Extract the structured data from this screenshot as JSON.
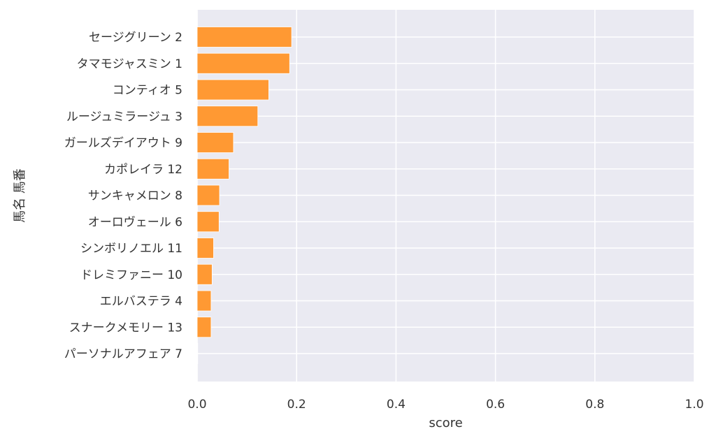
{
  "chart_data": {
    "type": "bar",
    "orientation": "horizontal",
    "categories": [
      "セージグリーン 2",
      "タマモジャスミン 1",
      "コンティオ 5",
      "ルージュミラージュ 3",
      "ガールズデイアウト 9",
      "カポレイラ 12",
      "サンキャメロン 8",
      "オーロヴェール 6",
      "シンボリノエル 11",
      "ドレミファニー 10",
      "エルバステラ 4",
      "スナークメモリー 13",
      "パーソナルアフェア 7"
    ],
    "values": [
      0.19,
      0.186,
      0.144,
      0.122,
      0.073,
      0.064,
      0.045,
      0.044,
      0.033,
      0.03,
      0.028,
      0.028,
      0.001
    ],
    "xlabel": "score",
    "ylabel": "馬名 馬番",
    "xlim": [
      0,
      1.0
    ],
    "xticks": [
      "0.0",
      "0.2",
      "0.4",
      "0.6",
      "0.8",
      "1.0"
    ],
    "grid": true,
    "colors": {
      "bar": "#ff9933",
      "plot_background": "#eaeaf2",
      "grid": "#ffffff",
      "text": "#333333"
    }
  }
}
